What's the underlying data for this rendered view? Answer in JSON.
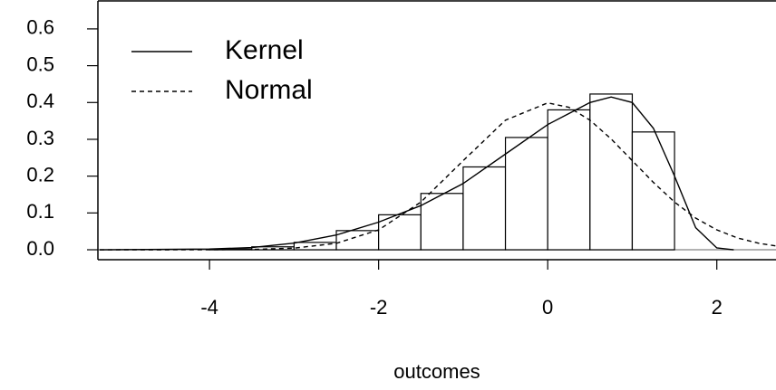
{
  "chart_data": {
    "type": "histogram",
    "x_label": "outcomes",
    "bins": [
      -4,
      -3.5,
      -3,
      -2.5,
      -2,
      -1.5,
      -1,
      -0.5,
      0,
      0.5,
      1,
      1.5
    ],
    "values": [
      0.002,
      0.008,
      0.02,
      0.052,
      0.095,
      0.153,
      0.225,
      0.305,
      0.38,
      0.423,
      0.32
    ],
    "bar_fill": "#ffffff",
    "bar_stroke": "#000000",
    "lines": [
      {
        "name": "Kernel",
        "color": "#000000",
        "dash": "solid",
        "x": [
          -5.3,
          -4,
          -3.5,
          -3,
          -2.5,
          -2,
          -1.5,
          -1,
          -0.5,
          0,
          0.25,
          0.5,
          0.75,
          1,
          1.25,
          1.5,
          1.75,
          2,
          2.2
        ],
        "values": [
          0,
          0.002,
          0.006,
          0.018,
          0.04,
          0.075,
          0.12,
          0.18,
          0.26,
          0.34,
          0.37,
          0.4,
          0.415,
          0.4,
          0.33,
          0.2,
          0.06,
          0.005,
          0
        ]
      },
      {
        "name": "Normal",
        "color": "#000000",
        "dash": "dashed",
        "x": [
          -5.3,
          -4,
          -3.5,
          -3,
          -2.5,
          -2,
          -1.5,
          -1,
          -0.5,
          0,
          0.25,
          0.5,
          0.75,
          1,
          1.25,
          1.5,
          1.75,
          2,
          2.25,
          2.5,
          2.7
        ],
        "values": [
          0,
          0.0001,
          0.0009,
          0.0044,
          0.0175,
          0.054,
          0.1295,
          0.242,
          0.352,
          0.399,
          0.387,
          0.352,
          0.301,
          0.242,
          0.183,
          0.1295,
          0.086,
          0.054,
          0.0317,
          0.0175,
          0.0104
        ]
      }
    ],
    "xlim": [
      -5.32,
      2.7
    ],
    "ylim": [
      -0.027,
      0.676
    ],
    "xticks": [
      -4,
      -2,
      0,
      2
    ],
    "yticks": [
      {
        "value": 0,
        "label": "0.0"
      },
      0.1,
      0.2,
      0.3,
      0.4,
      0.5,
      0.6
    ],
    "legend": "top-left"
  }
}
